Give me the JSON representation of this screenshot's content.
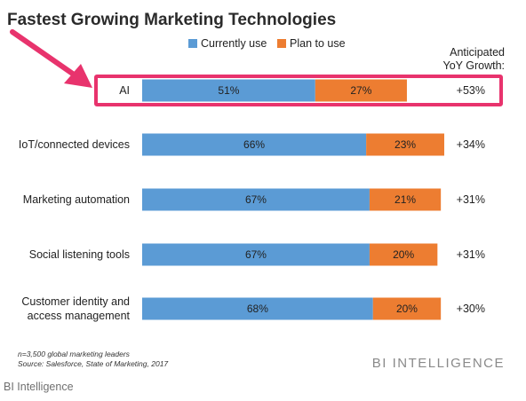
{
  "chart_data": {
    "type": "bar",
    "orientation": "horizontal",
    "stacked": true,
    "title": "Fastest Growing Marketing Technologies",
    "categories": [
      "AI",
      "IoT/connected devices",
      "Marketing automation",
      "Social listening tools",
      "Customer identity and access management"
    ],
    "category_lines": [
      [
        "AI"
      ],
      [
        "IoT/connected devices"
      ],
      [
        "Marketing automation"
      ],
      [
        "Social listening tools"
      ],
      [
        "Customer identity and",
        "access management"
      ]
    ],
    "series": [
      {
        "name": "Currently use",
        "values": [
          51,
          66,
          67,
          67,
          68
        ],
        "labels": [
          "51%",
          "66%",
          "67%",
          "67%",
          "68%"
        ],
        "color": "#5b9bd5"
      },
      {
        "name": "Plan to use",
        "values": [
          27,
          23,
          21,
          20,
          20
        ],
        "labels": [
          "27%",
          "23%",
          "21%",
          "20%",
          "20%"
        ],
        "color": "#ed7d31"
      }
    ],
    "growth_header": [
      "Anticipated",
      "YoY Growth:"
    ],
    "growth": [
      "+53%",
      "+34%",
      "+31%",
      "+31%",
      "+30%"
    ],
    "xlim": [
      0,
      100
    ],
    "highlight": {
      "category": "AI",
      "color": "#e8336d"
    },
    "notes": [
      "n=3,500 global marketing leaders",
      "Source: Salesforce, State of Marketing, 2017"
    ],
    "brand": "BI INTELLIGENCE"
  },
  "footer": "BI Intelligence"
}
